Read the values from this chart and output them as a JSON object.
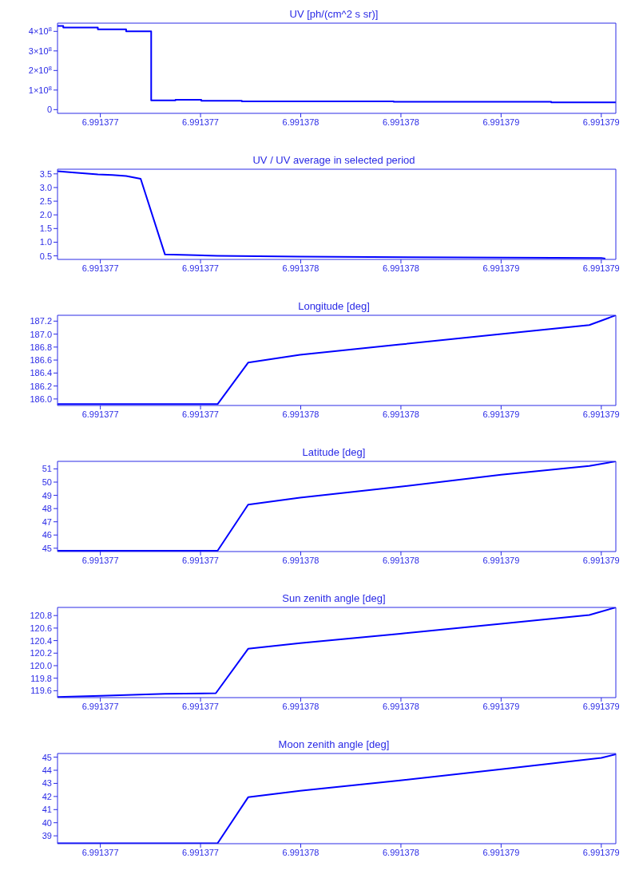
{
  "chart_data": [
    {
      "type": "step",
      "title": "UV [ph/(cm^2 s sr)]",
      "x": [
        6.991376729,
        6.991376752,
        6.99137689,
        6.991377003,
        6.991377103,
        6.9913772,
        6.991377303,
        6.991377465,
        6.991378071,
        6.9913787,
        6.991378958
      ],
      "series": [
        {
          "color": "#0000ff",
          "values": [
            428000000,
            420000000,
            410000000,
            400000000,
            47000000,
            50000000,
            45000000,
            42000000,
            40000000,
            37000000,
            37000000
          ]
        }
      ],
      "xlim": [
        6.991376729,
        6.991378958
      ],
      "xticks": [
        {
          "value": 6.9913769,
          "label": "6.991377"
        },
        {
          "value": 6.9913773,
          "label": "6.991377"
        },
        {
          "value": 6.9913777,
          "label": "6.991378"
        },
        {
          "value": 6.9913781,
          "label": "6.991378"
        },
        {
          "value": 6.9913785,
          "label": "6.991379"
        },
        {
          "value": 6.9913789,
          "label": "6.991379"
        }
      ],
      "ylim": [
        -19000000,
        442000000
      ],
      "yticks": [
        0,
        {
          "value": 100000000,
          "label": "1×10$^{8}$"
        },
        {
          "value": 200000000,
          "label": "2×10$^{8}$"
        },
        {
          "value": 300000000,
          "label": "3×10$^{8}$"
        },
        {
          "value": 400000000,
          "label": "4×10$^{8}$"
        }
      ],
      "grid": false,
      "legend": false
    },
    {
      "type": "line",
      "title": "UV / UV average in selected period",
      "x": [
        6.991376729,
        6.991376787,
        6.99137689,
        6.991376948,
        6.991377003,
        6.991377061,
        6.991377158,
        6.991377255,
        6.991377368,
        6.991377697,
        6.991378326,
        6.9913789,
        6.991378916
      ],
      "series": [
        {
          "color": "#0000ff",
          "values": [
            3.6,
            3.55,
            3.48,
            3.46,
            3.42,
            3.32,
            0.55,
            0.53,
            0.5,
            0.47,
            0.44,
            0.42,
            0.4
          ]
        }
      ],
      "xlim": [
        6.991376729,
        6.991378958
      ],
      "xticks": [
        {
          "value": 6.9913769,
          "label": "6.991377"
        },
        {
          "value": 6.9913773,
          "label": "6.991377"
        },
        {
          "value": 6.9913777,
          "label": "6.991378"
        },
        {
          "value": 6.9913781,
          "label": "6.991378"
        },
        {
          "value": 6.9913785,
          "label": "6.991379"
        },
        {
          "value": 6.9913789,
          "label": "6.991379"
        }
      ],
      "ylim": [
        0.37,
        3.67
      ],
      "yticks": [
        0.5,
        {
          "value": 1,
          "label": "1.0"
        },
        1.5,
        {
          "value": 2,
          "label": "2.0"
        },
        2.5,
        {
          "value": 3,
          "label": "3.0"
        },
        3.5
      ],
      "grid": false,
      "legend": false
    },
    {
      "type": "line",
      "title": "Longitude [deg]",
      "x": [
        6.991376729,
        6.991377368,
        6.99137749,
        6.991377697,
        6.991378097,
        6.9913785,
        6.991378852,
        6.991378958
      ],
      "series": [
        {
          "color": "#0000ff",
          "values": [
            185.92,
            185.92,
            186.56,
            186.68,
            186.84,
            187.0,
            187.14,
            187.29
          ]
        }
      ],
      "xlim": [
        6.991376729,
        6.991378958
      ],
      "xticks": [
        {
          "value": 6.9913769,
          "label": "6.991377"
        },
        {
          "value": 6.9913773,
          "label": "6.991377"
        },
        {
          "value": 6.9913777,
          "label": "6.991378"
        },
        {
          "value": 6.9913781,
          "label": "6.991378"
        },
        {
          "value": 6.9913785,
          "label": "6.991379"
        },
        {
          "value": 6.9913789,
          "label": "6.991379"
        }
      ],
      "ylim": [
        185.9,
        187.29
      ],
      "yticks": [
        {
          "value": 186,
          "label": "186.0"
        },
        186.2,
        186.4,
        186.6,
        186.8,
        {
          "value": 187,
          "label": "187.0"
        },
        187.2
      ],
      "grid": false,
      "legend": false
    },
    {
      "type": "line",
      "title": "Latitude [deg]",
      "x": [
        6.991376729,
        6.991377368,
        6.99137749,
        6.991377697,
        6.991378097,
        6.9913785,
        6.991378852,
        6.991378958
      ],
      "series": [
        {
          "color": "#0000ff",
          "values": [
            44.81,
            44.81,
            48.3,
            48.83,
            49.65,
            50.56,
            51.22,
            51.57
          ]
        }
      ],
      "xlim": [
        6.991376729,
        6.991378958
      ],
      "xticks": [
        {
          "value": 6.9913769,
          "label": "6.991377"
        },
        {
          "value": 6.9913773,
          "label": "6.991377"
        },
        {
          "value": 6.9913777,
          "label": "6.991378"
        },
        {
          "value": 6.9913781,
          "label": "6.991378"
        },
        {
          "value": 6.9913785,
          "label": "6.991379"
        },
        {
          "value": 6.9913789,
          "label": "6.991379"
        }
      ],
      "ylim": [
        44.75,
        51.57
      ],
      "yticks": [
        45,
        46,
        47,
        48,
        49,
        50,
        51
      ],
      "grid": false,
      "legend": false
    },
    {
      "type": "line",
      "title": "Sun zenith angle [deg]",
      "x": [
        6.991376729,
        6.9913769,
        6.991377158,
        6.991377361,
        6.99137749,
        6.991377697,
        6.991378097,
        6.9913785,
        6.991378852,
        6.991378958
      ],
      "series": [
        {
          "color": "#0000ff",
          "values": [
            119.5,
            119.52,
            119.55,
            119.56,
            120.27,
            120.36,
            120.51,
            120.67,
            120.81,
            120.93
          ]
        }
      ],
      "xlim": [
        6.991376729,
        6.991378958
      ],
      "xticks": [
        {
          "value": 6.9913769,
          "label": "6.991377"
        },
        {
          "value": 6.9913773,
          "label": "6.991377"
        },
        {
          "value": 6.9913777,
          "label": "6.991378"
        },
        {
          "value": 6.9913781,
          "label": "6.991378"
        },
        {
          "value": 6.9913785,
          "label": "6.991379"
        },
        {
          "value": 6.9913789,
          "label": "6.991379"
        }
      ],
      "ylim": [
        119.49,
        120.93
      ],
      "yticks": [
        119.6,
        119.8,
        {
          "value": 120,
          "label": "120.0"
        },
        120.2,
        120.4,
        120.6,
        120.8
      ],
      "grid": false,
      "legend": false
    },
    {
      "type": "line",
      "title": "Moon zenith angle [deg]",
      "x": [
        6.991376729,
        6.991377368,
        6.99137749,
        6.991377697,
        6.991378097,
        6.9913785,
        6.9913789,
        6.991378958
      ],
      "series": [
        {
          "color": "#0000ff",
          "values": [
            38.43,
            38.43,
            41.94,
            42.44,
            43.23,
            44.08,
            44.94,
            45.22
          ]
        }
      ],
      "xlim": [
        6.991376729,
        6.991378958
      ],
      "xticks": [
        {
          "value": 6.9913769,
          "label": "6.991377"
        },
        {
          "value": 6.9913773,
          "label": "6.991377"
        },
        {
          "value": 6.9913777,
          "label": "6.991378"
        },
        {
          "value": 6.9913781,
          "label": "6.991378"
        },
        {
          "value": 6.9913785,
          "label": "6.991379"
        },
        {
          "value": 6.9913789,
          "label": "6.991379"
        }
      ],
      "ylim": [
        38.4,
        45.28
      ],
      "yticks": [
        39,
        40,
        41,
        42,
        43,
        44,
        45
      ],
      "grid": false,
      "legend": false
    }
  ]
}
